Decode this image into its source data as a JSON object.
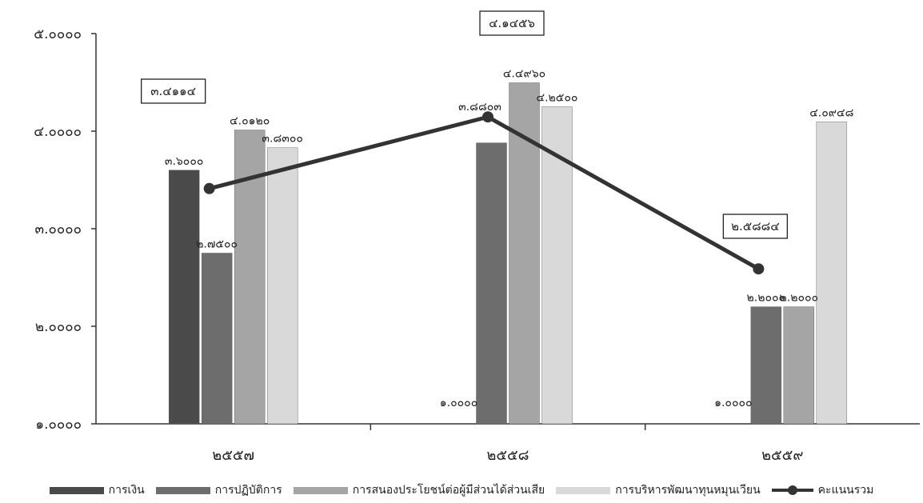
{
  "chart_data": {
    "type": "bar",
    "categories": [
      "๒๕๕๗",
      "๒๕๕๘",
      "๒๕๕๙"
    ],
    "ylim": [
      1,
      5
    ],
    "yticks": [
      {
        "value": 5,
        "label": "๕.๐๐๐๐"
      },
      {
        "value": 4,
        "label": "๔.๐๐๐๐"
      },
      {
        "value": 3,
        "label": "๓.๐๐๐๐"
      },
      {
        "value": 2,
        "label": "๒.๐๐๐๐"
      },
      {
        "value": 1,
        "label": "๑.๐๐๐๐"
      }
    ],
    "grid": false,
    "legend_position": "bottom",
    "series": [
      {
        "name": "การเงิน",
        "type": "bar",
        "color": "#4a4a4a",
        "values": [
          3.6,
          1.0,
          1.0
        ],
        "labels": [
          "๓.๖๐๐๐",
          "๑.๐๐๐๐",
          "๑.๐๐๐๐"
        ]
      },
      {
        "name": "การปฏิบัติการ",
        "type": "bar",
        "color": "#6d6d6d",
        "values": [
          2.75,
          3.88,
          2.2
        ],
        "labels": [
          "๒.๗๕๐๐",
          "",
          "๒.๒๐๐๐"
        ]
      },
      {
        "name": "การสนองประโยชน์ต่อผู้มีส่วนได้ส่วนเสีย",
        "type": "bar",
        "color": "#a5a5a5",
        "values": [
          4.012,
          4.496,
          2.2
        ],
        "labels": [
          "๔.๐๑๒๐",
          "๔.๔๙๖๐",
          "๒.๒๐๐๐"
        ]
      },
      {
        "name": "การบริหารพัฒนาทุนหมุนเวียน",
        "type": "bar",
        "color": "#d9d9d9",
        "values": [
          3.83,
          4.25,
          4.0948
        ],
        "labels": [
          "๓.๘๓๐๐",
          "๔.๒๕๐๐",
          "๔.๐๙๔๘"
        ]
      },
      {
        "name": "คะแนนรวม",
        "type": "line",
        "color": "#333333",
        "values": [
          3.4114,
          4.1456,
          2.5884
        ],
        "labels": [
          "๓.๔๑๑๔",
          "๔.๑๔๕๖",
          "๒.๕๘๘๔"
        ],
        "point_labels": [
          "",
          "๓.๘๘๐๓",
          ""
        ]
      }
    ]
  }
}
